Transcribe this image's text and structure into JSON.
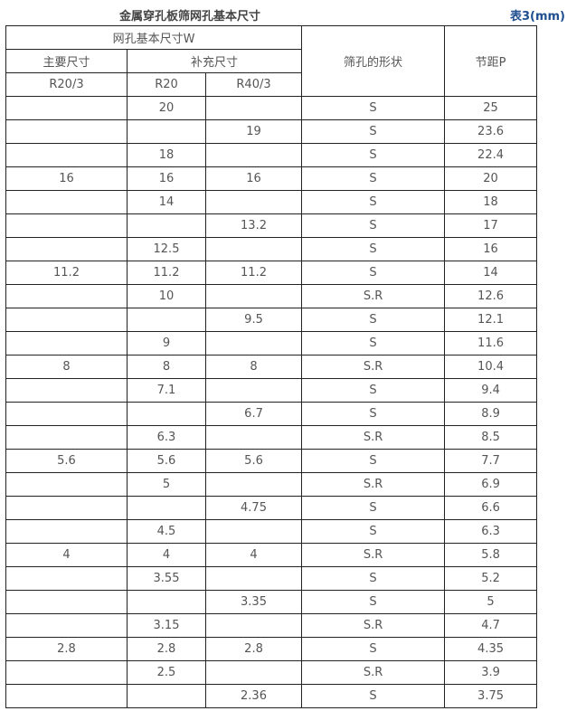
{
  "title": "金属穿孔板筛网孔基本尺寸",
  "table_tag": "表3(mm)",
  "colors": {
    "tag": "#1f4e8f",
    "text": "#555555"
  },
  "header": {
    "group": "网孔基本尺寸W",
    "main": "主要尺寸",
    "supplement": "补充尺寸",
    "shape": "筛孔的形状",
    "pitch": "节距P",
    "r20_3": "R20/3",
    "r20": "R20",
    "r40_3": "R40/3"
  },
  "rows": [
    [
      "",
      "20",
      "",
      "S",
      "25"
    ],
    [
      "",
      "",
      "19",
      "S",
      "23.6"
    ],
    [
      "",
      "18",
      "",
      "S",
      "22.4"
    ],
    [
      "16",
      "16",
      "16",
      "S",
      "20"
    ],
    [
      "",
      "14",
      "",
      "S",
      "18"
    ],
    [
      "",
      "",
      "13.2",
      "S",
      "17"
    ],
    [
      "",
      "12.5",
      "",
      "S",
      "16"
    ],
    [
      "11.2",
      "11.2",
      "11.2",
      "S",
      "14"
    ],
    [
      "",
      "10",
      "",
      "S.R",
      "12.6"
    ],
    [
      "",
      "",
      "9.5",
      "S",
      "12.1"
    ],
    [
      "",
      "9",
      "",
      "S",
      "11.6"
    ],
    [
      "8",
      "8",
      "8",
      "S.R",
      "10.4"
    ],
    [
      "",
      "7.1",
      "",
      "S",
      "9.4"
    ],
    [
      "",
      "",
      "6.7",
      "S",
      "8.9"
    ],
    [
      "",
      "6.3",
      "",
      "S.R",
      "8.5"
    ],
    [
      "5.6",
      "5.6",
      "5.6",
      "S",
      "7.7"
    ],
    [
      "",
      "5",
      "",
      "S.R",
      "6.9"
    ],
    [
      "",
      "",
      "4.75",
      "S",
      "6.6"
    ],
    [
      "",
      "4.5",
      "",
      "S",
      "6.3"
    ],
    [
      "4",
      "4",
      "4",
      "S.R",
      "5.8"
    ],
    [
      "",
      "3.55",
      "",
      "S",
      "5.2"
    ],
    [
      "",
      "",
      "3.35",
      "S",
      "5"
    ],
    [
      "",
      "3.15",
      "",
      "S.R",
      "4.7"
    ],
    [
      "2.8",
      "2.8",
      "2.8",
      "S",
      "4.35"
    ],
    [
      "",
      "2.5",
      "",
      "S.R",
      "3.9"
    ],
    [
      "",
      "",
      "2.36",
      "S",
      "3.75"
    ]
  ]
}
